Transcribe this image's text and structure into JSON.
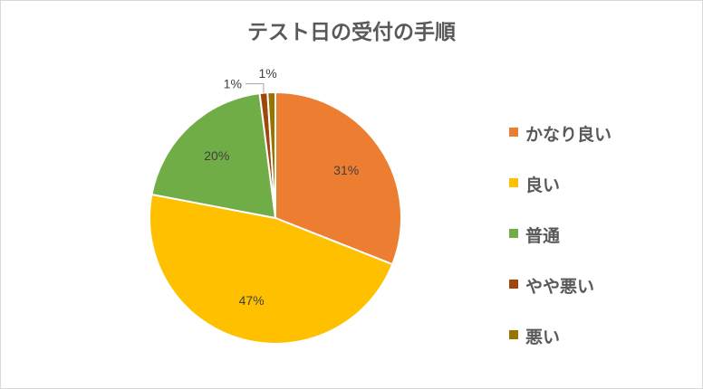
{
  "chart_data": {
    "type": "pie",
    "title": "テスト日の受付の手順",
    "categories": [
      "かなり良い",
      "良い",
      "普通",
      "やや悪い",
      "悪い"
    ],
    "values": [
      31,
      47,
      20,
      1,
      1
    ],
    "value_labels": [
      "31%",
      "47%",
      "20%",
      "1%",
      "1%"
    ],
    "colors": [
      "#ED7D31",
      "#FFC000",
      "#70AD47",
      "#9E480E",
      "#997300"
    ],
    "legend_position": "right",
    "start_angle_deg": 0,
    "direction": "clockwise"
  }
}
